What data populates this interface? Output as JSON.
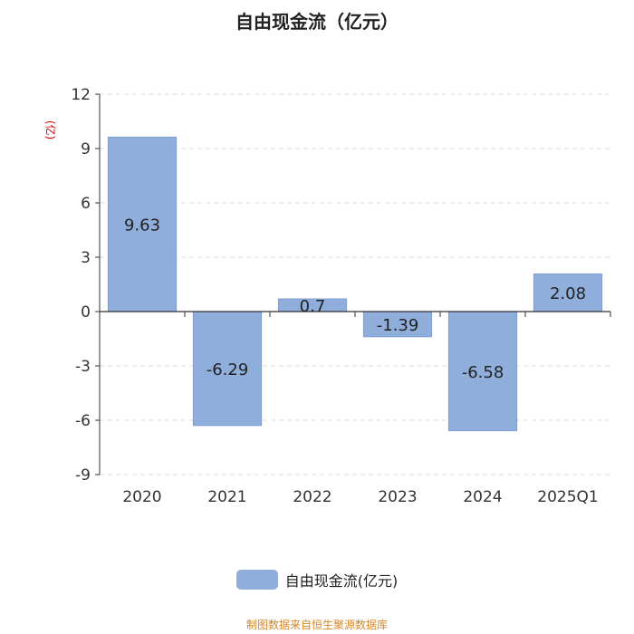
{
  "chart_data": {
    "type": "bar",
    "title": "自由现金流（亿元）",
    "unit_label": "(亿)",
    "categories": [
      "2020",
      "2021",
      "2022",
      "2023",
      "2024",
      "2025Q1"
    ],
    "series": [
      {
        "name": "自由现金流(亿元)",
        "values": [
          9.63,
          -6.29,
          0.7,
          -1.39,
          -6.58,
          2.08
        ]
      }
    ],
    "data_labels": [
      "9.63",
      "-6.29",
      "0.7",
      "-1.39",
      "-6.58",
      "2.08"
    ],
    "ylim": [
      -9,
      12
    ],
    "yticks": [
      12,
      9,
      6,
      3,
      0,
      -3,
      -6,
      -9
    ],
    "grid": true,
    "legend_position": "bottom-center"
  },
  "source": "制图数据来自恒生聚源数据库",
  "colors": {
    "bar": "#8faedc",
    "bar_stroke": "#7d9fd4",
    "unit_label": "#cc0000",
    "source": "#d4872a",
    "grid": "#dddddd",
    "axis": "#333333"
  }
}
